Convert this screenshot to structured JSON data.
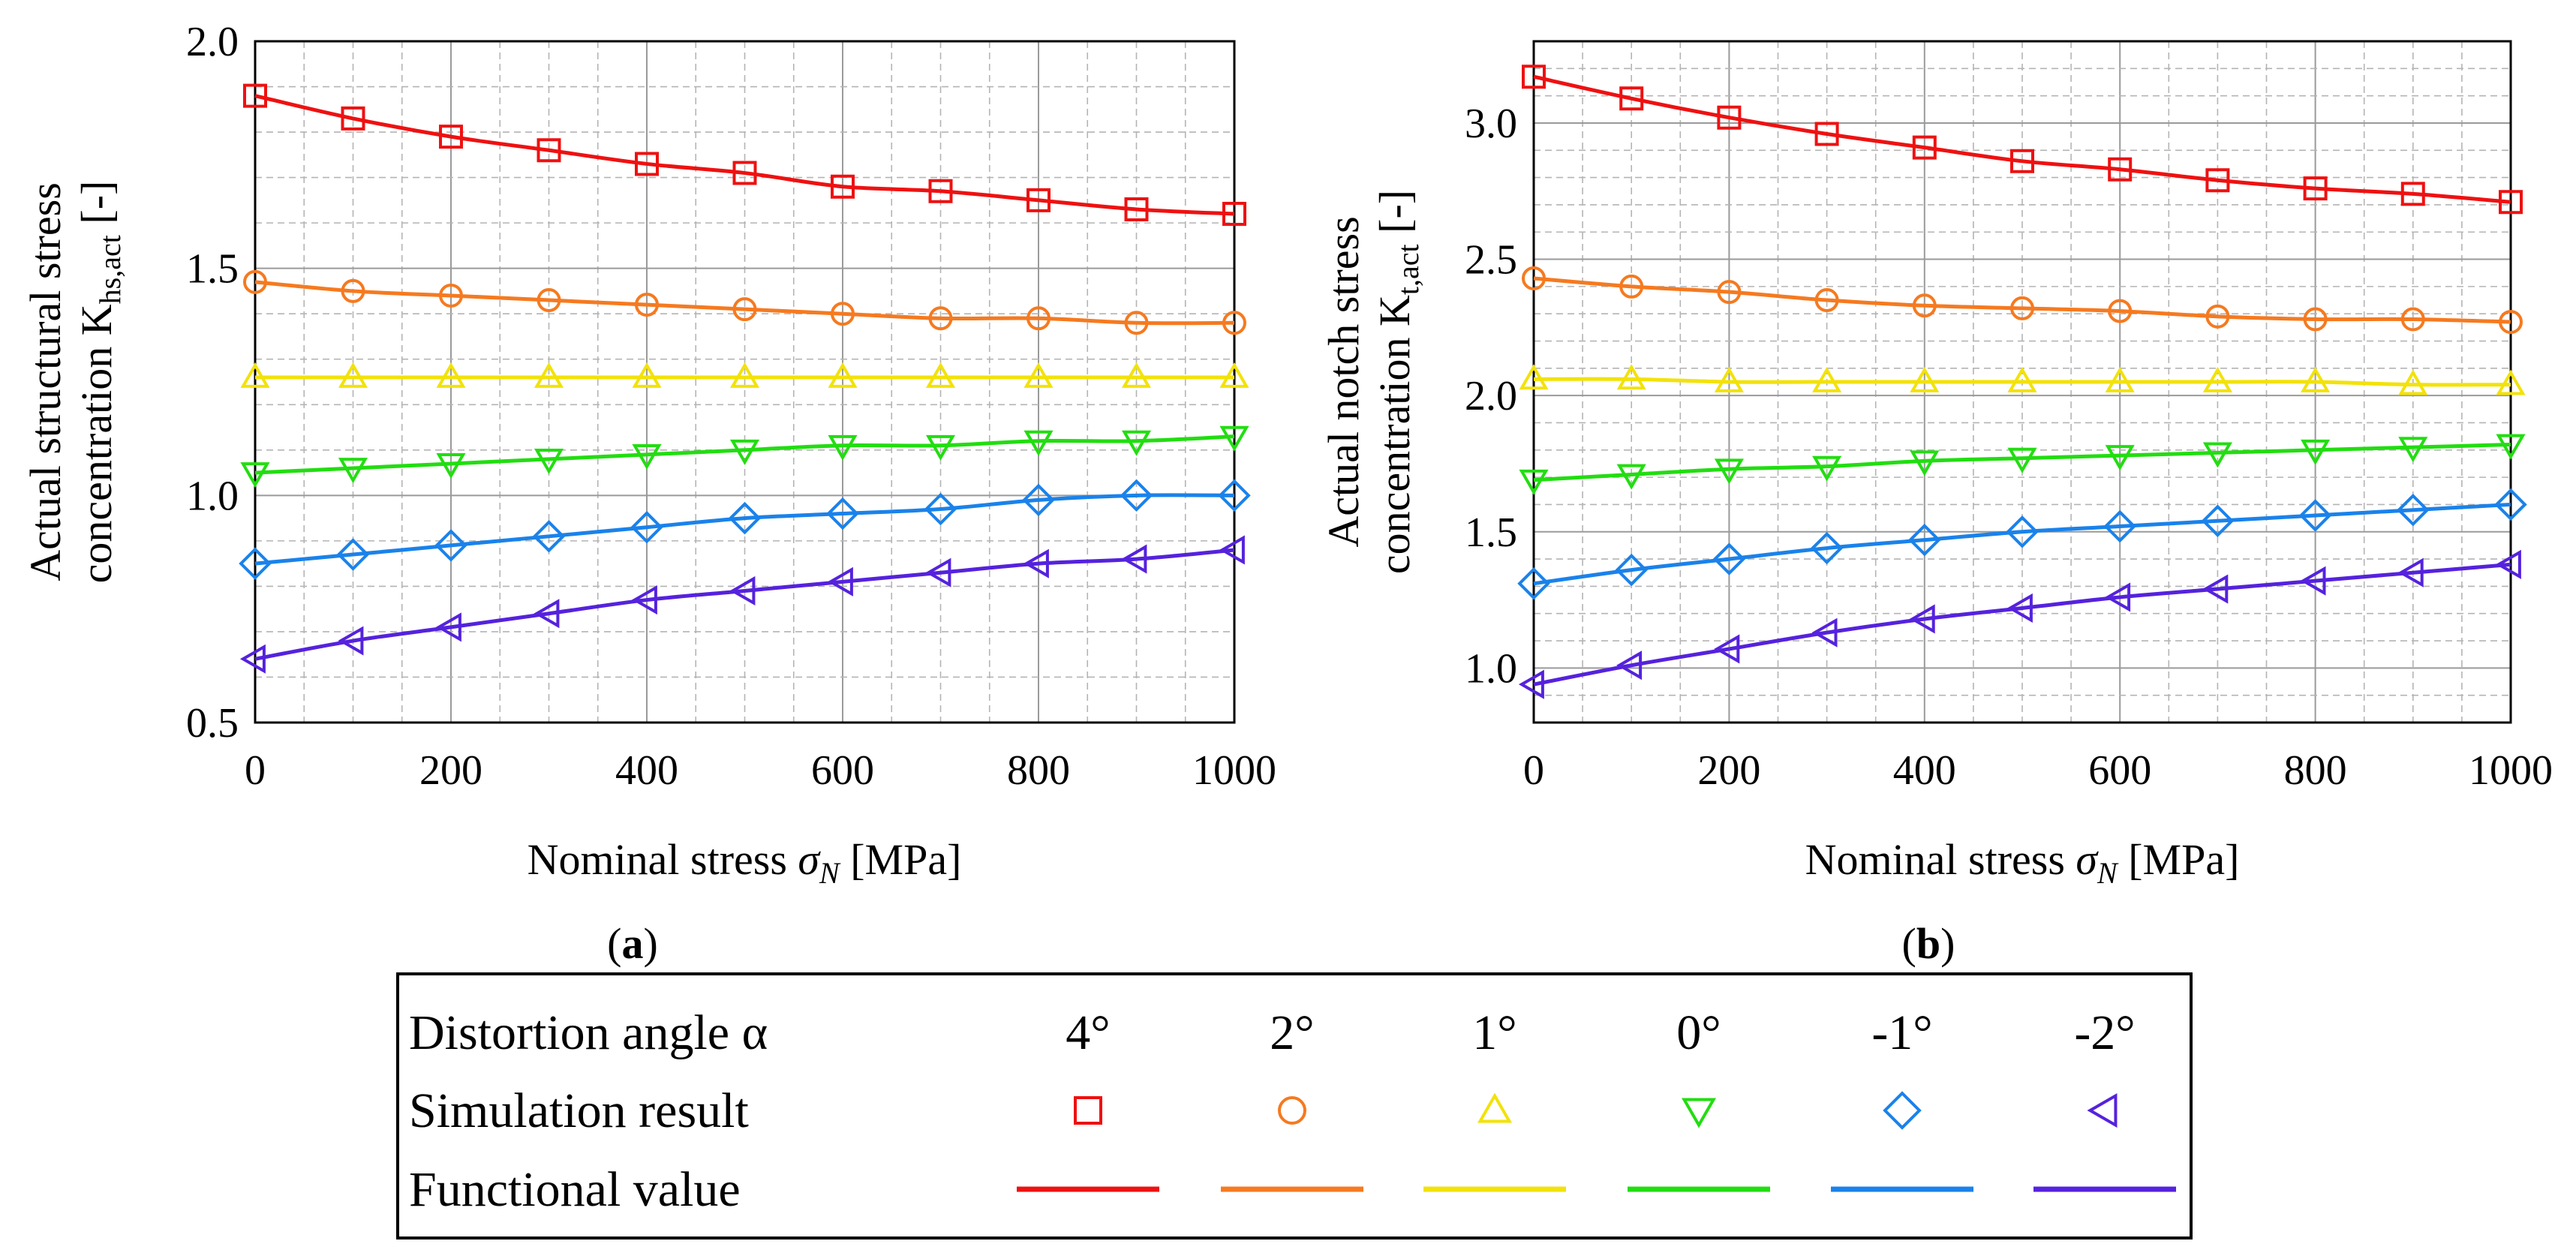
{
  "legend": {
    "header_label": "Distortion angle α",
    "row_marker_label": "Simulation result",
    "row_line_label": "Functional value",
    "angles": [
      "4°",
      "2°",
      "1°",
      "0°",
      "-1°",
      "-2°"
    ]
  },
  "series_style": [
    {
      "angle": "4°",
      "color": "#ee1111",
      "marker": "square"
    },
    {
      "angle": "2°",
      "color": "#f57a20",
      "marker": "circle"
    },
    {
      "angle": "1°",
      "color": "#f2e20a",
      "marker": "triangle-up"
    },
    {
      "angle": "0°",
      "color": "#22dd11",
      "marker": "triangle-down"
    },
    {
      "angle": "-1°",
      "color": "#1a82ea",
      "marker": "diamond"
    },
    {
      "angle": "-2°",
      "color": "#5522dd",
      "marker": "triangle-left"
    }
  ],
  "chart_data": [
    {
      "panel": "a",
      "panel_label_prefix": "(",
      "panel_label_letter": "a",
      "panel_label_suffix": ")",
      "type": "line",
      "xlabel": "Nominal stress σN [MPa]",
      "xlabel_main": "Nominal stress ",
      "xlabel_sym": "σ",
      "xlabel_sub": "N",
      "xlabel_unit": " [MPa]",
      "ylabel_line1": "Actual structural stress",
      "ylabel_line2": "concentration K",
      "ylabel_sub": "hs,act",
      "ylabel_unit": " [-]",
      "xlim": [
        0,
        1000
      ],
      "ylim": [
        0.5,
        2.0
      ],
      "xticks": [
        0,
        200,
        400,
        600,
        800,
        1000
      ],
      "xtick_labels": [
        "0",
        "200",
        "400",
        "600",
        "800",
        "1000"
      ],
      "yticks": [
        0.5,
        1.0,
        1.5,
        2.0
      ],
      "ytick_labels": [
        "0.5",
        "1.0",
        "1.5",
        "2.0"
      ],
      "x": [
        0,
        100,
        200,
        300,
        400,
        500,
        600,
        700,
        800,
        900,
        1000
      ],
      "series": [
        {
          "name": "4°",
          "values": [
            1.88,
            1.83,
            1.79,
            1.76,
            1.73,
            1.71,
            1.68,
            1.67,
            1.65,
            1.63,
            1.62
          ]
        },
        {
          "name": "2°",
          "values": [
            1.47,
            1.45,
            1.44,
            1.43,
            1.42,
            1.41,
            1.4,
            1.39,
            1.39,
            1.38,
            1.38
          ]
        },
        {
          "name": "1°",
          "values": [
            1.26,
            1.26,
            1.26,
            1.26,
            1.26,
            1.26,
            1.26,
            1.26,
            1.26,
            1.26,
            1.26
          ]
        },
        {
          "name": "0°",
          "values": [
            1.05,
            1.06,
            1.07,
            1.08,
            1.09,
            1.1,
            1.11,
            1.11,
            1.12,
            1.12,
            1.13
          ]
        },
        {
          "name": "-1°",
          "values": [
            0.85,
            0.87,
            0.89,
            0.91,
            0.93,
            0.95,
            0.96,
            0.97,
            0.99,
            1.0,
            1.0
          ]
        },
        {
          "name": "-2°",
          "values": [
            0.64,
            0.68,
            0.71,
            0.74,
            0.77,
            0.79,
            0.81,
            0.83,
            0.85,
            0.86,
            0.88
          ]
        }
      ]
    },
    {
      "panel": "b",
      "panel_label_prefix": "(",
      "panel_label_letter": "b",
      "panel_label_suffix": ")",
      "type": "line",
      "xlabel": "Nominal stress σN [MPa]",
      "xlabel_main": "Nominal stress ",
      "xlabel_sym": "σ",
      "xlabel_sub": "N",
      "xlabel_unit": " [MPa]",
      "ylabel_line1": "Actual notch stress",
      "ylabel_line2": "concentration K",
      "ylabel_sub": "t,act",
      "ylabel_unit": " [-]",
      "xlim": [
        0,
        1000
      ],
      "ylim": [
        0.8,
        3.3
      ],
      "xticks": [
        0,
        200,
        400,
        600,
        800,
        1000
      ],
      "xtick_labels": [
        "0",
        "200",
        "400",
        "600",
        "800",
        "1000"
      ],
      "yticks": [
        1.0,
        1.5,
        2.0,
        2.5,
        3.0
      ],
      "ytick_labels": [
        "1.0",
        "1.5",
        "2.0",
        "2.5",
        "3.0"
      ],
      "x": [
        0,
        100,
        200,
        300,
        400,
        500,
        600,
        700,
        800,
        900,
        1000
      ],
      "series": [
        {
          "name": "4°",
          "values": [
            3.17,
            3.09,
            3.02,
            2.96,
            2.91,
            2.86,
            2.83,
            2.79,
            2.76,
            2.74,
            2.71
          ]
        },
        {
          "name": "2°",
          "values": [
            2.43,
            2.4,
            2.38,
            2.35,
            2.33,
            2.32,
            2.31,
            2.29,
            2.28,
            2.28,
            2.27
          ]
        },
        {
          "name": "1°",
          "values": [
            2.06,
            2.06,
            2.05,
            2.05,
            2.05,
            2.05,
            2.05,
            2.05,
            2.05,
            2.04,
            2.04
          ]
        },
        {
          "name": "0°",
          "values": [
            1.69,
            1.71,
            1.73,
            1.74,
            1.76,
            1.77,
            1.78,
            1.79,
            1.8,
            1.81,
            1.82
          ]
        },
        {
          "name": "-1°",
          "values": [
            1.31,
            1.36,
            1.4,
            1.44,
            1.47,
            1.5,
            1.52,
            1.54,
            1.56,
            1.58,
            1.6
          ]
        },
        {
          "name": "-2°",
          "values": [
            0.94,
            1.01,
            1.07,
            1.13,
            1.18,
            1.22,
            1.26,
            1.29,
            1.32,
            1.35,
            1.38
          ]
        }
      ]
    }
  ]
}
